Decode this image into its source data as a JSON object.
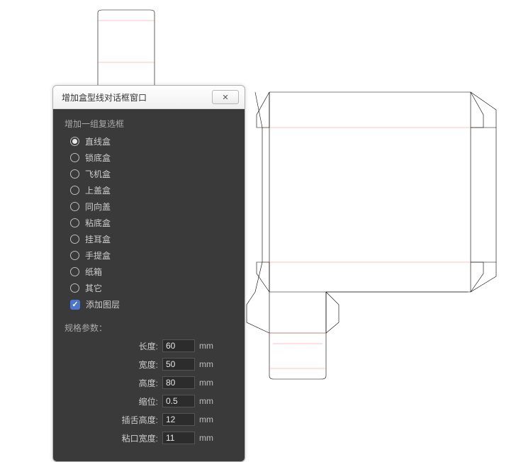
{
  "dialog": {
    "title": "增加盒型线对话框窗口",
    "group_label": "增加一组复选框",
    "options": [
      {
        "label": "直线盒",
        "checked": true
      },
      {
        "label": "锁底盒",
        "checked": false
      },
      {
        "label": "飞机盒",
        "checked": false
      },
      {
        "label": "上盖盒",
        "checked": false
      },
      {
        "label": "同向盖",
        "checked": false
      },
      {
        "label": "粘底盒",
        "checked": false
      },
      {
        "label": "挂耳盒",
        "checked": false
      },
      {
        "label": "手提盒",
        "checked": false
      },
      {
        "label": "纸箱",
        "checked": false
      },
      {
        "label": "其它",
        "checked": false
      }
    ],
    "add_layer_label": "添加图层",
    "add_layer_checked": true,
    "params_label": "规格参数：",
    "params": [
      {
        "label": "长度:",
        "value": "60",
        "unit": "mm"
      },
      {
        "label": "宽度:",
        "value": "50",
        "unit": "mm"
      },
      {
        "label": "高度:",
        "value": "80",
        "unit": "mm"
      },
      {
        "label": "缩位:",
        "value": "0.5",
        "unit": "mm"
      },
      {
        "label": "插舌高度:",
        "value": "12",
        "unit": "mm"
      },
      {
        "label": "粘口宽度:",
        "value": "11",
        "unit": "mm"
      }
    ]
  },
  "dieline": {
    "cut_color": "#000000",
    "fold_color": "#ff8888",
    "background": "#ffffff",
    "stroke_width": 0.6
  }
}
